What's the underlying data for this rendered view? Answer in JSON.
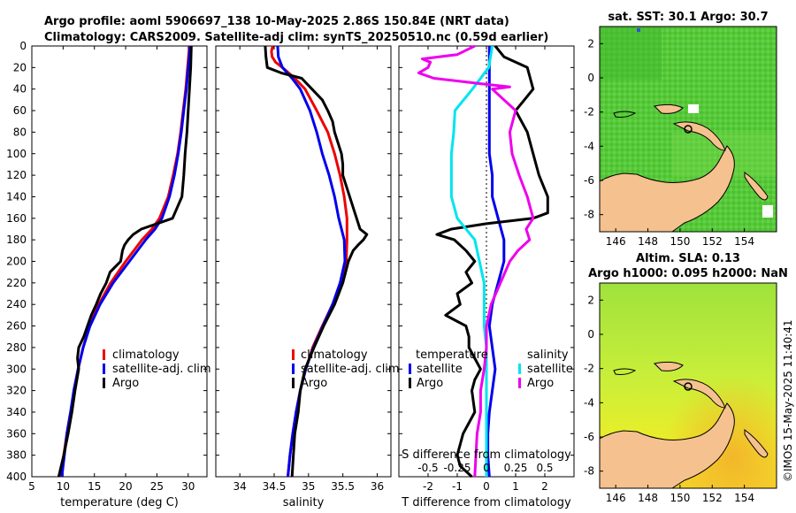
{
  "header": {
    "line1": "Argo profile: aoml 5906697_138 10-May-2025 2.86S 150.84E (NRT data)",
    "line2": "Climatology: CARS2009. Satellite-adj clim: synTS_20250510.nc (0.59d earlier)"
  },
  "colors": {
    "climatology": "#ee0000",
    "satellite": "#0000ee",
    "argo": "#000000",
    "salinity_diff": "#00e5ee",
    "argo_s_diff": "#ee00ee",
    "land": "#f5c18e"
  },
  "depth_axis": {
    "ticks": [
      0,
      20,
      40,
      60,
      80,
      100,
      120,
      140,
      160,
      180,
      200,
      220,
      240,
      260,
      280,
      300,
      320,
      340,
      360,
      380,
      400
    ]
  },
  "chart_data": [
    {
      "id": "temperature",
      "type": "line",
      "xlabel": "temperature (deg C)",
      "xlim": [
        5,
        33
      ],
      "xticks": [
        5,
        10,
        15,
        20,
        25,
        30
      ],
      "ylim": [
        0,
        400
      ],
      "legend": [
        "climatology",
        "satellite-adj. clim",
        "Argo"
      ],
      "series": [
        {
          "name": "climatology",
          "color": "#ee0000",
          "depth": [
            0,
            20,
            40,
            60,
            80,
            100,
            120,
            140,
            160,
            170,
            180,
            200,
            220,
            240,
            260,
            280,
            300,
            320,
            340,
            360,
            380,
            400
          ],
          "values": [
            30.2,
            29.9,
            29.6,
            29.2,
            28.8,
            28.3,
            27.6,
            26.8,
            25.4,
            24.2,
            22.6,
            20.0,
            17.6,
            15.7,
            14.2,
            13.2,
            12.4,
            11.8,
            11.2,
            10.6,
            10.1,
            9.6
          ]
        },
        {
          "name": "satellite-adj. clim",
          "color": "#0000ee",
          "depth": [
            0,
            20,
            40,
            60,
            80,
            100,
            120,
            140,
            160,
            170,
            180,
            200,
            220,
            240,
            260,
            280,
            300,
            320,
            340,
            360,
            380,
            400
          ],
          "values": [
            30.3,
            30.0,
            29.7,
            29.3,
            28.9,
            28.4,
            27.8,
            27.0,
            25.8,
            24.7,
            23.2,
            20.6,
            18.0,
            15.9,
            14.3,
            13.2,
            12.4,
            11.7,
            11.2,
            10.6,
            10.2,
            9.8
          ]
        },
        {
          "name": "Argo",
          "color": "#000000",
          "depth": [
            0,
            20,
            40,
            60,
            80,
            100,
            120,
            140,
            160,
            165,
            170,
            175,
            180,
            185,
            190,
            200,
            210,
            220,
            230,
            240,
            250,
            260,
            270,
            280,
            290,
            300,
            320,
            340,
            360,
            380,
            400
          ],
          "values": [
            30.5,
            30.4,
            30.2,
            30.0,
            29.8,
            29.5,
            29.3,
            29.0,
            27.5,
            25.0,
            22.5,
            21.2,
            20.4,
            19.8,
            19.5,
            19.2,
            17.5,
            16.9,
            16.0,
            15.3,
            14.5,
            13.9,
            13.3,
            12.5,
            12.3,
            12.5,
            11.9,
            11.4,
            10.8,
            10.1,
            9.3
          ]
        }
      ]
    },
    {
      "id": "salinity",
      "type": "line",
      "xlabel": "salinity",
      "xlim": [
        33.65,
        36.2
      ],
      "xticks": [
        34,
        34.5,
        35,
        35.5,
        36
      ],
      "ylim": [
        0,
        400
      ],
      "legend": [
        "climatology",
        "satellite-adj. clim",
        "Argo"
      ],
      "series": [
        {
          "name": "climatology",
          "color": "#ee0000",
          "depth": [
            0,
            5,
            10,
            15,
            20,
            30,
            40,
            60,
            80,
            100,
            120,
            140,
            160,
            180,
            200,
            220,
            240,
            260,
            280,
            300,
            320,
            340,
            360,
            380,
            400
          ],
          "values": [
            34.48,
            34.46,
            34.47,
            34.52,
            34.62,
            34.8,
            34.95,
            35.12,
            35.28,
            35.38,
            35.46,
            35.52,
            35.56,
            35.56,
            35.55,
            35.48,
            35.35,
            35.2,
            35.06,
            34.96,
            34.88,
            34.82,
            34.77,
            34.73,
            34.7
          ]
        },
        {
          "name": "satellite-adj. clim",
          "color": "#0000ee",
          "depth": [
            0,
            10,
            20,
            30,
            40,
            60,
            80,
            100,
            120,
            140,
            160,
            180,
            200,
            220,
            240,
            260,
            280,
            300,
            320,
            340,
            360,
            380,
            400
          ],
          "values": [
            34.55,
            34.56,
            34.62,
            34.76,
            34.88,
            35.02,
            35.12,
            35.2,
            35.3,
            35.38,
            35.44,
            35.52,
            35.53,
            35.46,
            35.35,
            35.21,
            35.07,
            34.96,
            34.88,
            34.82,
            34.77,
            34.73,
            34.7
          ]
        },
        {
          "name": "Argo",
          "color": "#000000",
          "depth": [
            0,
            10,
            20,
            25,
            30,
            40,
            50,
            60,
            70,
            80,
            100,
            110,
            120,
            140,
            160,
            170,
            175,
            180,
            185,
            190,
            200,
            220,
            240,
            260,
            280,
            300,
            320,
            340,
            360,
            380,
            400
          ],
          "values": [
            34.37,
            34.38,
            34.4,
            34.6,
            34.9,
            35.05,
            35.2,
            35.28,
            35.35,
            35.38,
            35.48,
            35.5,
            35.5,
            35.6,
            35.7,
            35.75,
            35.85,
            35.8,
            35.72,
            35.65,
            35.58,
            35.5,
            35.38,
            35.22,
            35.08,
            34.95,
            34.88,
            34.85,
            34.8,
            34.78,
            34.76
          ]
        }
      ]
    },
    {
      "id": "differences",
      "type": "line",
      "xlabel": "T difference from climatology",
      "xlim": [
        -3,
        3
      ],
      "xticks": [
        -2,
        -1,
        0,
        1,
        2
      ],
      "top_label": "S difference from climatology",
      "top_tick_labels": [
        "-0.5",
        "-0.25",
        "0",
        "0.25",
        "0.5"
      ],
      "top_tick_values": [
        -0.5,
        -0.25,
        0,
        0.25,
        0.5
      ],
      "ylim": [
        0,
        400
      ],
      "legend": {
        "left_title": "temperature",
        "right_title": "salinity",
        "items": [
          "satellite",
          "Argo",
          "satellite",
          "Argo"
        ]
      },
      "series": [
        {
          "name": "T satellite",
          "color": "#0000ee",
          "depth": [
            0,
            20,
            40,
            60,
            80,
            100,
            120,
            140,
            160,
            180,
            200,
            220,
            240,
            260,
            280,
            300,
            320,
            340,
            360,
            380,
            400
          ],
          "values": [
            0.1,
            0.1,
            0.1,
            0.1,
            0.1,
            0.1,
            0.2,
            0.2,
            0.4,
            0.6,
            0.6,
            0.4,
            0.2,
            0.1,
            0.2,
            0.3,
            0.2,
            0.1,
            0.05,
            0.05,
            0.1
          ]
        },
        {
          "name": "T Argo",
          "color": "#000000",
          "depth": [
            0,
            10,
            20,
            30,
            40,
            50,
            60,
            80,
            100,
            120,
            140,
            155,
            160,
            165,
            170,
            175,
            180,
            190,
            200,
            210,
            220,
            230,
            240,
            250,
            260,
            270,
            280,
            290,
            300,
            310,
            320,
            340,
            350,
            360,
            370,
            380,
            390,
            400
          ],
          "values": [
            0.3,
            0.6,
            1.4,
            1.5,
            1.6,
            1.3,
            1.0,
            1.4,
            1.6,
            1.8,
            2.1,
            2.1,
            1.6,
            0.0,
            -1.2,
            -1.7,
            -1.1,
            -0.7,
            -0.4,
            -0.7,
            -0.5,
            -1.0,
            -0.9,
            -1.4,
            -0.7,
            -0.6,
            -0.6,
            -0.4,
            -0.2,
            -0.4,
            -0.5,
            -0.4,
            -0.6,
            -0.8,
            -0.9,
            -1.0,
            -0.9,
            -0.5
          ]
        },
        {
          "name": "S satellite",
          "color": "#00e5ee",
          "depth": [
            0,
            20,
            40,
            60,
            80,
            100,
            120,
            140,
            160,
            180,
            200,
            220,
            240,
            260,
            280,
            300,
            320,
            340,
            360,
            380,
            400
          ],
          "values": [
            0.05,
            0.02,
            -0.12,
            -0.27,
            -0.28,
            -0.3,
            -0.3,
            -0.3,
            -0.25,
            -0.1,
            -0.06,
            -0.02,
            -0.02,
            -0.02,
            0.0,
            0.0,
            0.0,
            0.0,
            0.0,
            0.0,
            0.0
          ]
        },
        {
          "name": "S Argo",
          "color": "#ee00ee",
          "depth": [
            0,
            8,
            12,
            15,
            20,
            25,
            30,
            35,
            38,
            40,
            45,
            60,
            80,
            100,
            120,
            140,
            160,
            170,
            180,
            190,
            200,
            220,
            240,
            260,
            280,
            300,
            320,
            340,
            360,
            380,
            400
          ],
          "values": [
            -0.1,
            -0.25,
            -0.55,
            -0.48,
            -0.5,
            -0.58,
            -0.45,
            -0.05,
            0.2,
            0.05,
            0.1,
            0.25,
            0.2,
            0.22,
            0.28,
            0.35,
            0.4,
            0.34,
            0.37,
            0.27,
            0.2,
            0.12,
            0.04,
            0.0,
            0.0,
            -0.02,
            -0.05,
            -0.05,
            -0.08,
            -0.09,
            -0.1
          ]
        }
      ]
    }
  ],
  "map_sst": {
    "title": "sat. SST: 30.1 Argo: 30.7",
    "lon_ticks": [
      "146",
      "148",
      "150",
      "152",
      "154"
    ],
    "lat_ticks": [
      "2",
      "0",
      "-2",
      "-4",
      "-6",
      "-8"
    ]
  },
  "map_sla": {
    "title1": "Altim. SLA: 0.13",
    "title2": "Argo h1000: 0.095 h2000: NaN",
    "lon_ticks": [
      "146",
      "148",
      "150",
      "152",
      "154"
    ],
    "lat_ticks": [
      "2",
      "0",
      "-2",
      "-4",
      "-6",
      "-8"
    ]
  },
  "watermark": "©IMOS 15-May-2025 11:40:41"
}
